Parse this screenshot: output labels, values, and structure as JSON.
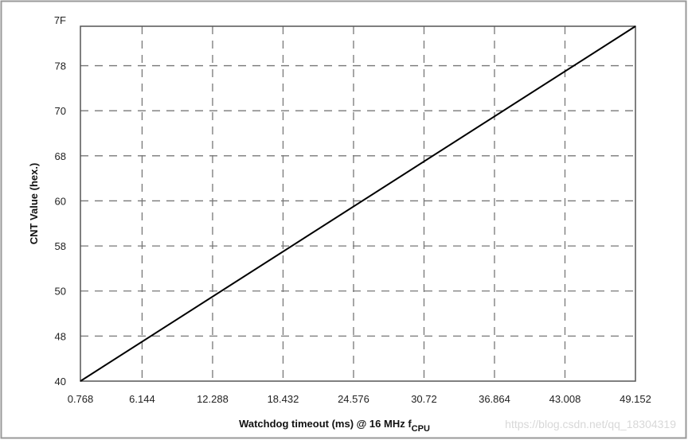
{
  "chart_data": {
    "type": "line",
    "title": "",
    "xlabel": "Watchdog timeout (ms) @ 16 MHz f",
    "xlabel_subscript": "CPU",
    "ylabel": "CNT Value (hex.)",
    "x_ticks": [
      "0.768",
      "6.144",
      "12.288",
      "18.432",
      "24.576",
      "30.72",
      "36.864",
      "43.008",
      "49.152"
    ],
    "y_ticks": [
      "40",
      "48",
      "50",
      "58",
      "60",
      "68",
      "70",
      "78",
      "7F"
    ],
    "xlim": [
      0.768,
      49.152
    ],
    "ylim_hex": [
      "40",
      "7F"
    ],
    "grid": true,
    "grid_style": "dashed",
    "series": [
      {
        "x": [
          0.768,
          49.152
        ],
        "y_hex": [
          "40",
          "7F"
        ],
        "color": "#000000"
      }
    ]
  },
  "watermark": "https://blog.csdn.net/qq_18304319"
}
